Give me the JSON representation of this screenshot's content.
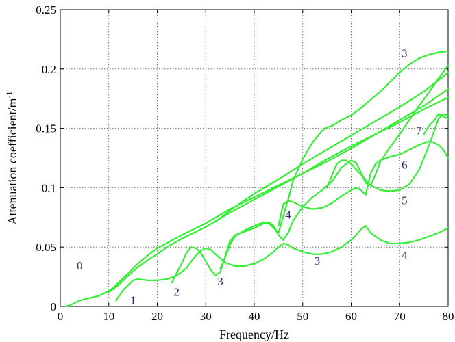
{
  "chart_data": {
    "type": "line",
    "title": "",
    "xlabel": "Frequency/Hz",
    "ylabel": "Attenuation coefficient/m",
    "ylabel_superscript": "-1",
    "xlim": [
      0,
      80
    ],
    "ylim": [
      0,
      0.25
    ],
    "x_ticks": [
      "0",
      "10",
      "20",
      "30",
      "40",
      "50",
      "60",
      "70",
      "80"
    ],
    "y_ticks": [
      "0",
      "0.05",
      "0.1",
      "0.15",
      "0.2",
      "0.25"
    ],
    "grid": true,
    "legend": "none",
    "line_color": "#33ee33",
    "series": [
      {
        "x": [
          1,
          2,
          3,
          4,
          5,
          6,
          7,
          8,
          9,
          10,
          11,
          12,
          14,
          16,
          18,
          20,
          25,
          30,
          35,
          40,
          45,
          50,
          55,
          60,
          65,
          70,
          75,
          80
        ],
        "y": [
          0.0,
          0.001,
          0.003,
          0.005,
          0.006,
          0.007,
          0.008,
          0.009,
          0.011,
          0.013,
          0.016,
          0.02,
          0.028,
          0.036,
          0.043,
          0.049,
          0.06,
          0.07,
          0.082,
          0.092,
          0.102,
          0.112,
          0.122,
          0.133,
          0.145,
          0.157,
          0.169,
          0.183
        ]
      },
      {
        "x": [
          10,
          12,
          14,
          16,
          18,
          20,
          22,
          25,
          30,
          35,
          40,
          45,
          50,
          55,
          60,
          65,
          70,
          75,
          80
        ],
        "y": [
          0.012,
          0.018,
          0.026,
          0.033,
          0.039,
          0.044,
          0.05,
          0.057,
          0.067,
          0.079,
          0.09,
          0.101,
          0.112,
          0.124,
          0.135,
          0.145,
          0.155,
          0.166,
          0.176
        ]
      },
      {
        "x": [
          32,
          35,
          40,
          45,
          50,
          55,
          60,
          65,
          70,
          75,
          80
        ],
        "y": [
          0.071,
          0.081,
          0.095,
          0.107,
          0.12,
          0.132,
          0.144,
          0.156,
          0.168,
          0.181,
          0.197
        ]
      },
      {
        "x": [
          11.5,
          12,
          13,
          14,
          15,
          16,
          18,
          20,
          22,
          24,
          26,
          27,
          28,
          29,
          30,
          31,
          32,
          34,
          36,
          38,
          40,
          42,
          43,
          44,
          45,
          46,
          47,
          48,
          50,
          52,
          54,
          56,
          58,
          60,
          61,
          62,
          63,
          64,
          66,
          68,
          70,
          72,
          74,
          76,
          78,
          80
        ],
        "y": [
          0.005,
          0.008,
          0.014,
          0.018,
          0.022,
          0.023,
          0.022,
          0.022,
          0.023,
          0.026,
          0.032,
          0.038,
          0.043,
          0.047,
          0.049,
          0.048,
          0.044,
          0.037,
          0.034,
          0.034,
          0.036,
          0.04,
          0.043,
          0.046,
          0.05,
          0.053,
          0.052,
          0.049,
          0.046,
          0.044,
          0.044,
          0.046,
          0.05,
          0.056,
          0.06,
          0.065,
          0.068,
          0.062,
          0.056,
          0.053,
          0.053,
          0.054,
          0.056,
          0.059,
          0.062,
          0.066
        ]
      },
      {
        "x": [
          23,
          24,
          25,
          26,
          27,
          28,
          29,
          30,
          31,
          32,
          33,
          34,
          35,
          36,
          38,
          40,
          42,
          43,
          44,
          45,
          46,
          47,
          48,
          50,
          52,
          54,
          56,
          58,
          60,
          61,
          62,
          63,
          64,
          65,
          66,
          68,
          70,
          72,
          74,
          76,
          78,
          80
        ],
        "y": [
          0.02,
          0.028,
          0.036,
          0.045,
          0.05,
          0.049,
          0.045,
          0.038,
          0.031,
          0.026,
          0.029,
          0.042,
          0.055,
          0.06,
          0.063,
          0.066,
          0.07,
          0.071,
          0.068,
          0.06,
          0.056,
          0.062,
          0.072,
          0.084,
          0.092,
          0.098,
          0.105,
          0.117,
          0.123,
          0.121,
          0.113,
          0.104,
          0.102,
          0.111,
          0.122,
          0.134,
          0.145,
          0.157,
          0.169,
          0.18,
          0.192,
          0.203
        ]
      },
      {
        "x": [
          33,
          34,
          35,
          36,
          38,
          40,
          42,
          43,
          44,
          45,
          46,
          47,
          48,
          50,
          52,
          54,
          55,
          56,
          58,
          60,
          62,
          64,
          66,
          68,
          70,
          72,
          74,
          76,
          78,
          80
        ],
        "y": [
          0.032,
          0.041,
          0.052,
          0.059,
          0.064,
          0.068,
          0.071,
          0.07,
          0.066,
          0.062,
          0.076,
          0.09,
          0.106,
          0.124,
          0.138,
          0.148,
          0.151,
          0.152,
          0.157,
          0.161,
          0.167,
          0.174,
          0.181,
          0.189,
          0.197,
          0.204,
          0.209,
          0.212,
          0.214,
          0.215
        ]
      },
      {
        "x": [
          45,
          46,
          47,
          48,
          50,
          52,
          54,
          56,
          58,
          60,
          61,
          62,
          63,
          64,
          65,
          66,
          68,
          70,
          72,
          74,
          76,
          77,
          78,
          79,
          80
        ],
        "y": [
          0.068,
          0.086,
          0.089,
          0.088,
          0.084,
          0.082,
          0.083,
          0.087,
          0.093,
          0.098,
          0.1,
          0.098,
          0.094,
          0.112,
          0.12,
          0.123,
          0.126,
          0.128,
          0.132,
          0.136,
          0.139,
          0.138,
          0.136,
          0.132,
          0.125
        ]
      },
      {
        "x": [
          55,
          56,
          57,
          58,
          59,
          60,
          62,
          64,
          66,
          68,
          70,
          72,
          74,
          76,
          78,
          79,
          80
        ],
        "y": [
          0.1,
          0.11,
          0.12,
          0.123,
          0.123,
          0.12,
          0.111,
          0.102,
          0.098,
          0.097,
          0.098,
          0.103,
          0.115,
          0.135,
          0.158,
          0.162,
          0.161
        ]
      },
      {
        "x": [
          75,
          76,
          77,
          78,
          79,
          80
        ],
        "y": [
          0.145,
          0.152,
          0.156,
          0.162,
          0.16,
          0.158
        ]
      }
    ],
    "annotations": [
      {
        "text": "0",
        "x": 4,
        "y": 0.031
      },
      {
        "text": "1",
        "x": 15,
        "y": 0.002
      },
      {
        "text": "2",
        "x": 24,
        "y": 0.009
      },
      {
        "text": "3",
        "x": 33,
        "y": 0.018
      },
      {
        "text": "3",
        "x": 53,
        "y": 0.035
      },
      {
        "text": "4",
        "x": 47,
        "y": 0.074
      },
      {
        "text": "4",
        "x": 71,
        "y": 0.04
      },
      {
        "text": "5",
        "x": 71,
        "y": 0.086
      },
      {
        "text": "6",
        "x": 71,
        "y": 0.116
      },
      {
        "text": "7",
        "x": 74,
        "y": 0.145
      },
      {
        "text": "3",
        "x": 71,
        "y": 0.21
      }
    ]
  }
}
